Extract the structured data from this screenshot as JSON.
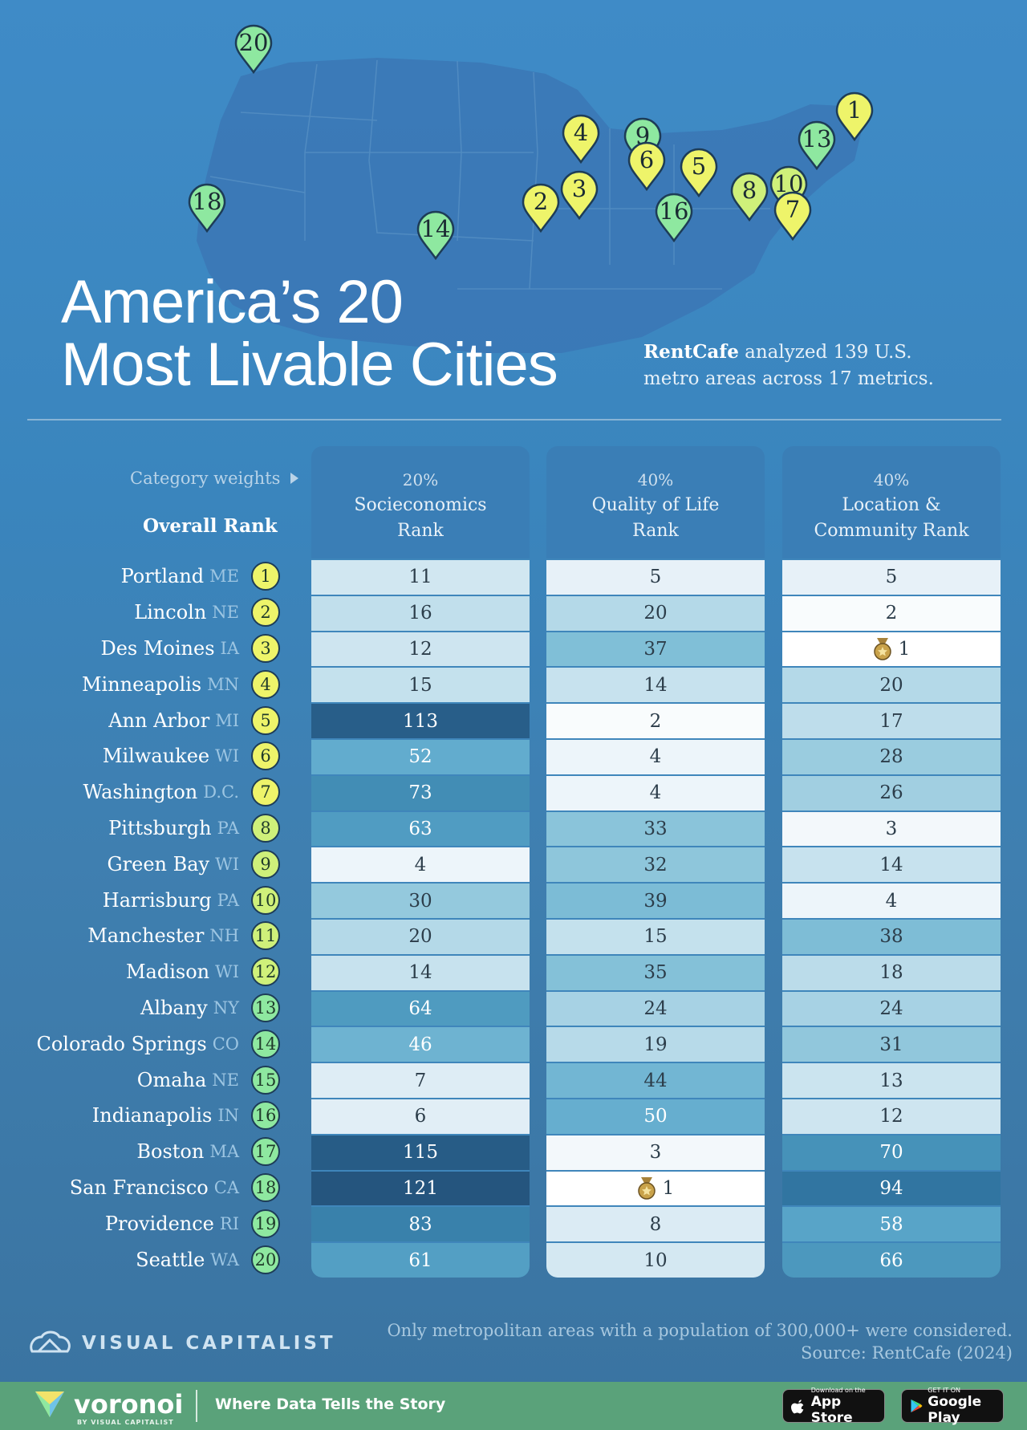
{
  "title_line1": "America’s 20",
  "title_line2": "Most Livable Cities",
  "subtitle_brand": "RentCafe",
  "subtitle_rest_line1": " analyzed 139 U.S.",
  "subtitle_line2": "metro areas across 17 metrics.",
  "category_weights_label": "Category weights",
  "overall_rank_label": "Overall Rank",
  "columns": [
    {
      "weight": "20%",
      "label_line1": "Socieconomics",
      "label_line2": "Rank"
    },
    {
      "weight": "40%",
      "label_line1": "Quality of Life",
      "label_line2": "Rank"
    },
    {
      "weight": "40%",
      "label_line1": "Location &",
      "label_line2": "Community Rank"
    }
  ],
  "rows": [
    {
      "rank": "1",
      "city": "Portland",
      "state": "ME",
      "socio": "11",
      "qol": "5",
      "loc": "5"
    },
    {
      "rank": "2",
      "city": "Lincoln",
      "state": "NE",
      "socio": "16",
      "qol": "20",
      "loc": "2"
    },
    {
      "rank": "3",
      "city": "Des Moines",
      "state": "IA",
      "socio": "12",
      "qol": "37",
      "loc": "1"
    },
    {
      "rank": "4",
      "city": "Minneapolis",
      "state": "MN",
      "socio": "15",
      "qol": "14",
      "loc": "20"
    },
    {
      "rank": "5",
      "city": "Ann Arbor",
      "state": "MI",
      "socio": "113",
      "qol": "2",
      "loc": "17"
    },
    {
      "rank": "6",
      "city": "Milwaukee",
      "state": "WI",
      "socio": "52",
      "qol": "4",
      "loc": "28"
    },
    {
      "rank": "7",
      "city": "Washington",
      "state": "D.C.",
      "socio": "73",
      "qol": "4",
      "loc": "26"
    },
    {
      "rank": "8",
      "city": "Pittsburgh",
      "state": "PA",
      "socio": "63",
      "qol": "33",
      "loc": "3"
    },
    {
      "rank": "9",
      "city": "Green Bay",
      "state": "WI",
      "socio": "4",
      "qol": "32",
      "loc": "14"
    },
    {
      "rank": "10",
      "city": "Harrisburg",
      "state": "PA",
      "socio": "30",
      "qol": "39",
      "loc": "4"
    },
    {
      "rank": "11",
      "city": "Manchester",
      "state": "NH",
      "socio": "20",
      "qol": "15",
      "loc": "38"
    },
    {
      "rank": "12",
      "city": "Madison",
      "state": "WI",
      "socio": "14",
      "qol": "35",
      "loc": "18"
    },
    {
      "rank": "13",
      "city": "Albany",
      "state": "NY",
      "socio": "64",
      "qol": "24",
      "loc": "24"
    },
    {
      "rank": "14",
      "city": "Colorado Springs",
      "state": "CO",
      "socio": "46",
      "qol": "19",
      "loc": "31"
    },
    {
      "rank": "15",
      "city": "Omaha",
      "state": "NE",
      "socio": "7",
      "qol": "44",
      "loc": "13"
    },
    {
      "rank": "16",
      "city": "Indianapolis",
      "state": "IN",
      "socio": "6",
      "qol": "50",
      "loc": "12"
    },
    {
      "rank": "17",
      "city": "Boston",
      "state": "MA",
      "socio": "115",
      "qol": "3",
      "loc": "70"
    },
    {
      "rank": "18",
      "city": "San Francisco",
      "state": "CA",
      "socio": "121",
      "qol": "1",
      "loc": "94"
    },
    {
      "rank": "19",
      "city": "Providence",
      "state": "RI",
      "socio": "83",
      "qol": "8",
      "loc": "58"
    },
    {
      "rank": "20",
      "city": "Seattle",
      "state": "WA",
      "socio": "61",
      "qol": "10",
      "loc": "66"
    }
  ],
  "map_pins": [
    "20",
    "18",
    "14",
    "2",
    "3",
    "4",
    "9",
    "6",
    "5",
    "16",
    "8",
    "10",
    "7",
    "13",
    "1"
  ],
  "footer_note_line1": "Only metropolitan areas with a population of 300,000+ were considered.",
  "footer_note_line2": "Source: RentCafe (2024)",
  "brand_name": "VISUAL CAPITALIST",
  "voronoi_name": "voronoi",
  "voronoi_by": "BY VISUAL CAPITALIST",
  "tagline": "Where Data Tells the Story",
  "app_store_small": "Download on the",
  "app_store_big": "App Store",
  "google_play_small": "GET IT ON",
  "google_play_big": "Google Play",
  "colors": {
    "yellow_badge": "#eef46a",
    "green_badge": "#8ee8a0",
    "background": "#3f8bc7",
    "bottom_bar": "#5aa27a"
  }
}
